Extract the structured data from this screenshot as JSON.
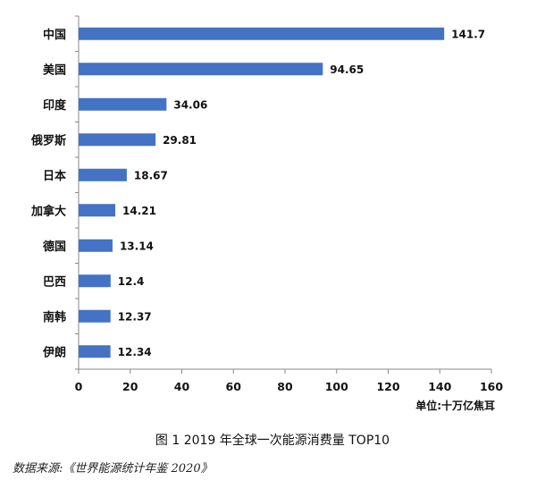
{
  "chart_data": {
    "type": "bar",
    "orientation": "horizontal",
    "categories": [
      "中国",
      "美国",
      "印度",
      "俄罗斯",
      "日本",
      "加拿大",
      "德国",
      "巴西",
      "南韩",
      "伊朗"
    ],
    "values": [
      141.7,
      94.65,
      34.06,
      29.81,
      18.67,
      14.21,
      13.14,
      12.4,
      12.37,
      12.34
    ],
    "value_labels": [
      "141.7",
      "94.65",
      "34.06",
      "29.81",
      "18.67",
      "14.21",
      "13.14",
      "12.4",
      "12.37",
      "12.34"
    ],
    "xlim": [
      0,
      160
    ],
    "x_ticks": [
      0,
      20,
      40,
      60,
      80,
      100,
      120,
      140,
      160
    ],
    "unit_label": "单位:十万亿焦耳",
    "bar_color": "#4472c4",
    "grid": false
  },
  "caption": "图 1 2019 年全球一次能源消费量 TOP10",
  "source": "数据来源:《世界能源统计年鉴 2020》"
}
